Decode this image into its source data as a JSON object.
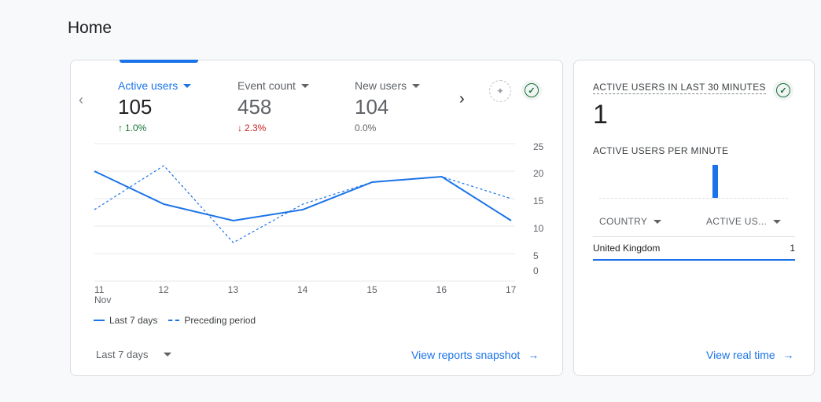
{
  "page": {
    "title": "Home"
  },
  "summary": {
    "metrics": [
      {
        "label": "Active users",
        "value": "105",
        "change": "1.0%",
        "direction": "up",
        "arrow": "↑"
      },
      {
        "label": "Event count",
        "value": "458",
        "change": "2.3%",
        "direction": "down",
        "arrow": "↓"
      },
      {
        "label": "New users",
        "value": "104",
        "change": "0.0%",
        "direction": "flat",
        "arrow": ""
      }
    ],
    "insights_icon": "insights-icon",
    "status_icon": "check-circle-icon",
    "date_range": "Last 7 days",
    "link": "View reports snapshot",
    "legend": {
      "current": "Last 7 days",
      "previous": "Preceding period"
    }
  },
  "chart_data": {
    "type": "line",
    "x": [
      "11",
      "12",
      "13",
      "14",
      "15",
      "16",
      "17"
    ],
    "x_sublabel": "Nov",
    "yticks": [
      0,
      5,
      10,
      15,
      20,
      25
    ],
    "ylim": [
      0,
      25
    ],
    "series": [
      {
        "name": "Last 7 days",
        "style": "solid",
        "values": [
          20,
          14,
          11,
          13,
          18,
          19,
          11
        ]
      },
      {
        "name": "Preceding period",
        "style": "dashed",
        "values": [
          13,
          21,
          7,
          14,
          18,
          19,
          15
        ]
      }
    ],
    "color": "#1a73e8"
  },
  "realtime": {
    "title": "ACTIVE USERS IN LAST 30 MINUTES",
    "value": "1",
    "subtitle": "ACTIVE USERS PER MINUTE",
    "per_minute_peak": 1,
    "columns": {
      "country": "COUNTRY",
      "users": "ACTIVE US..."
    },
    "rows": [
      {
        "country": "United Kingdom",
        "users": "1"
      }
    ],
    "link": "View real time",
    "status_icon": "check-circle-icon"
  },
  "colors": {
    "accent": "#1a73e8",
    "positive": "#137333",
    "negative": "#c5221f"
  }
}
